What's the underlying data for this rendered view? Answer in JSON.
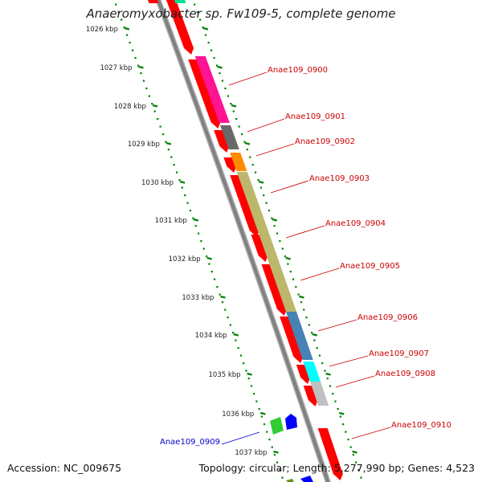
{
  "title": "Anaeromyxobacter sp. Fw109-5, complete genome",
  "footer": {
    "accession": "Accession: NC_009675",
    "topology": "Topology: circular; Length: 5,277,990 bp; Genes: 4,523"
  },
  "colors": {
    "backbone": "#808080",
    "forward_cds": "#ff0000",
    "tick_major": "#008000",
    "tick_minor": "#008000",
    "label_red": "#cc0000",
    "label_blue": "#0000cc"
  },
  "ticks": [
    "1026 kbp",
    "1027 kbp",
    "1028 kbp",
    "1029 kbp",
    "1030 kbp",
    "1031 kbp",
    "1032 kbp",
    "1033 kbp",
    "1034 kbp",
    "1035 kbp",
    "1036 kbp",
    "1037 kbp"
  ],
  "genes": [
    {
      "label": "Anae109_0900",
      "color": "#ff0000",
      "function_color": "#ff1493",
      "ring": "outer"
    },
    {
      "label": "Anae109_0901",
      "color": "#ff0000",
      "function_color": "#696969",
      "ring": "outer"
    },
    {
      "label": "Anae109_0902",
      "color": "#ff0000",
      "function_color": "#ff8c00",
      "ring": "outer"
    },
    {
      "label": "Anae109_0903",
      "color": "#ff0000",
      "function_color": "#bdb76b",
      "ring": "outer"
    },
    {
      "label": "Anae109_0904",
      "color": "#ff0000",
      "function_color": "#bdb76b",
      "ring": "outer"
    },
    {
      "label": "Anae109_0905",
      "color": "#ff0000",
      "function_color": "#bdb76b",
      "ring": "outer"
    },
    {
      "label": "Anae109_0906",
      "color": "#ff0000",
      "function_color": "#4682b4",
      "ring": "outer"
    },
    {
      "label": "Anae109_0907",
      "color": "#ff0000",
      "function_color": "#00ffff",
      "ring": "outer"
    },
    {
      "label": "Anae109_0908",
      "color": "#ff0000",
      "function_color": "#c0c0c0",
      "ring": "outer"
    },
    {
      "label": "Anae109_0910",
      "color": "#ff0000",
      "function_color": "#ff0000",
      "ring": "outer"
    },
    {
      "label": "Anae109_0909",
      "color": "#0000ff",
      "function_color": "#32cd32",
      "ring": "inner"
    }
  ]
}
